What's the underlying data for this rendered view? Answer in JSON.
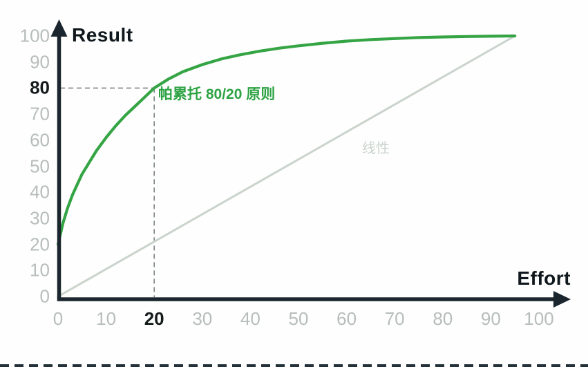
{
  "chart_data": {
    "type": "line",
    "title": "",
    "xlabel": "Effort",
    "ylabel": "Result",
    "xlim": [
      0,
      100
    ],
    "ylim": [
      0,
      100
    ],
    "grid": false,
    "legend_position": "inline-labels",
    "x_ticks": [
      0,
      10,
      20,
      30,
      40,
      50,
      60,
      70,
      80,
      90,
      100
    ],
    "y_ticks": [
      0,
      10,
      20,
      30,
      40,
      50,
      60,
      70,
      80,
      90,
      100
    ],
    "emphasized_x_tick": 20,
    "emphasized_y_tick": 80,
    "annotation_point": {
      "x": 20,
      "y": 80
    },
    "series": [
      {
        "name": "帕累托 80/20 原则",
        "color": "#34a444",
        "stroke_width": 4.2,
        "points": [
          [
            0,
            20
          ],
          [
            0.5,
            24
          ],
          [
            1,
            28
          ],
          [
            1.5,
            31
          ],
          [
            2,
            34
          ],
          [
            3,
            39
          ],
          [
            4,
            43
          ],
          [
            5,
            47
          ],
          [
            6,
            50
          ],
          [
            7,
            53
          ],
          [
            8,
            56
          ],
          [
            9,
            58.5
          ],
          [
            10,
            61
          ],
          [
            12,
            65.5
          ],
          [
            14,
            69.5
          ],
          [
            16,
            73
          ],
          [
            18,
            76.5
          ],
          [
            20,
            80
          ],
          [
            23,
            83.5
          ],
          [
            26,
            86.3
          ],
          [
            30,
            89
          ],
          [
            34,
            91.2
          ],
          [
            38,
            92.8
          ],
          [
            42,
            94.2
          ],
          [
            46,
            95.3
          ],
          [
            50,
            96.2
          ],
          [
            55,
            97.2
          ],
          [
            60,
            98
          ],
          [
            65,
            98.6
          ],
          [
            70,
            99
          ],
          [
            75,
            99.4
          ],
          [
            80,
            99.6
          ],
          [
            85,
            99.8
          ],
          [
            90,
            99.9
          ],
          [
            95,
            100
          ]
        ]
      },
      {
        "name": "线性",
        "color": "#cbd3cd",
        "stroke_width": 3,
        "points": [
          [
            0,
            0
          ],
          [
            95,
            100
          ]
        ]
      }
    ]
  },
  "colors": {
    "axis": "#1a252d",
    "tick_gray": "#b7bdba",
    "tick_emphasis": "#151b1b",
    "dashed_guide": "#7e8484",
    "bottom_border": "#243139",
    "pareto_green": "#34a444",
    "linear_gray": "#cbd3cd",
    "linear_label_gray": "#ccd4ce"
  }
}
